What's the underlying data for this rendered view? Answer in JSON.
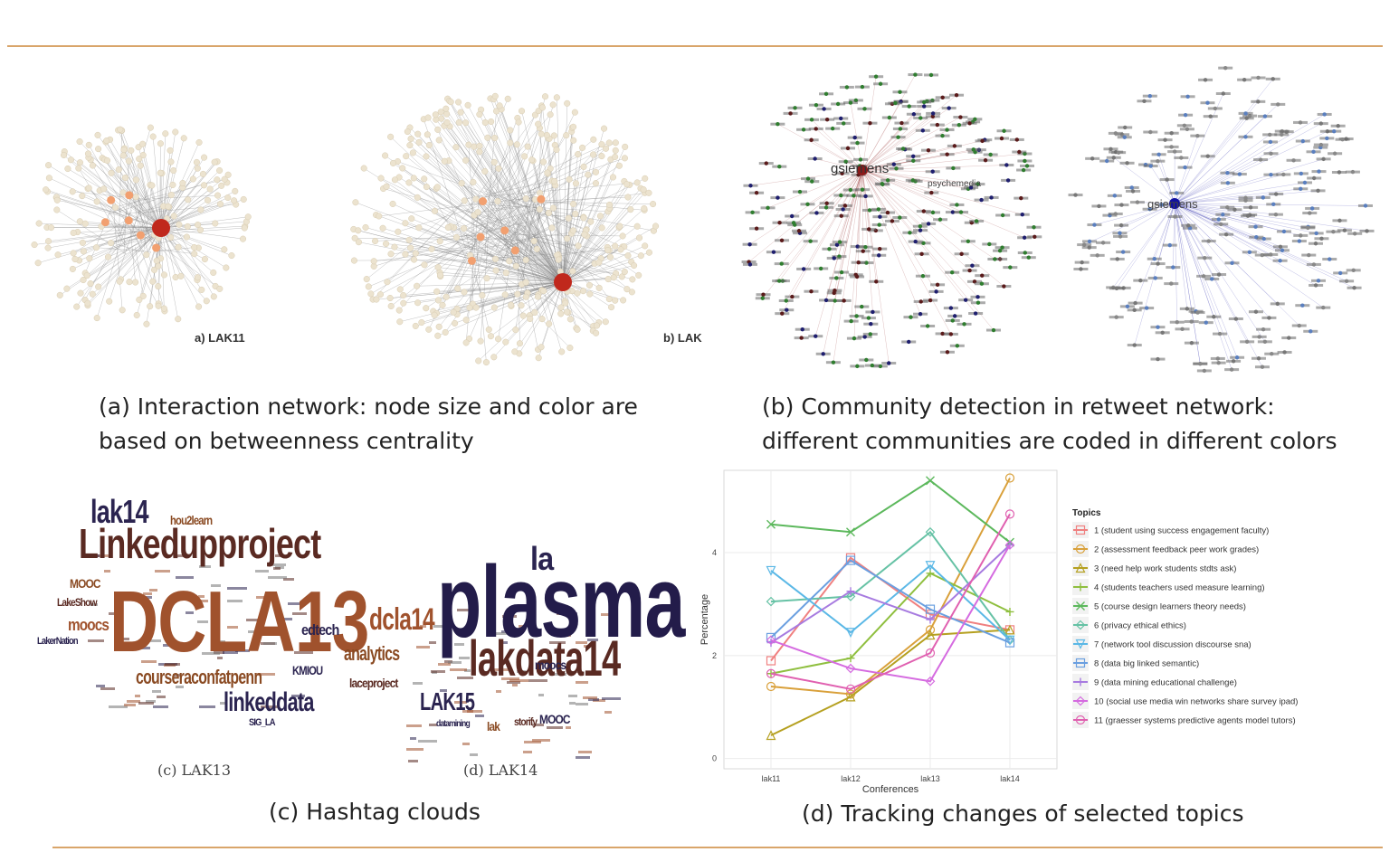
{
  "panel_a": {
    "caption_line1": "(a) Interaction network: node size and color are",
    "caption_line2": "based on betweenness centrality",
    "label_left": "a) LAK11",
    "label_right": "b) LAK"
  },
  "panel_b": {
    "caption_line1": "(b) Community detection in retweet network:",
    "caption_line2": "different communities are coded in different colors",
    "node_label_left": "gsiemens",
    "node_label_left_2": "psychemedia",
    "node_label_right": "gsiemens"
  },
  "panel_c": {
    "caption": "(c) Hashtag clouds",
    "sublabel_left": "(c) LAK13",
    "sublabel_right": "(d) LAK14",
    "cloud_lak13": [
      {
        "text": "DCLA13",
        "color": "#a0522d"
      },
      {
        "text": "Linkedupproject",
        "color": "#5a2a22"
      },
      {
        "text": "lak14",
        "color": "#2b2450"
      },
      {
        "text": "linkeddata",
        "color": "#2b2450"
      },
      {
        "text": "courseraconfatpenn",
        "color": "#8a4a22"
      },
      {
        "text": "moocs",
        "color": "#a0522d"
      },
      {
        "text": "hou2learn",
        "color": "#8a4a22"
      },
      {
        "text": "edtech",
        "color": "#2b2450"
      },
      {
        "text": "KMIOU",
        "color": "#2b2450"
      },
      {
        "text": "LakerNation",
        "color": "#2b2450"
      },
      {
        "text": "MOOC",
        "color": "#8a4a22"
      },
      {
        "text": "LakeShow",
        "color": "#5a2a22"
      },
      {
        "text": "SIG_LA",
        "color": "#2b2450"
      }
    ],
    "cloud_lak14": [
      {
        "text": "plasma",
        "color": "#231c4a"
      },
      {
        "text": "lakdata14",
        "color": "#5a2a22"
      },
      {
        "text": "la",
        "color": "#2b2450"
      },
      {
        "text": "dcla14",
        "color": "#a0522d"
      },
      {
        "text": "analytics",
        "color": "#8a4a22"
      },
      {
        "text": "LAK15",
        "color": "#2b2450"
      },
      {
        "text": "laceproject",
        "color": "#5a2a22"
      },
      {
        "text": "moocs",
        "color": "#2b2450"
      },
      {
        "text": "storify",
        "color": "#5a2a22"
      },
      {
        "text": "MOOC",
        "color": "#2b2450"
      },
      {
        "text": "datamining",
        "color": "#2b2450"
      },
      {
        "text": "lak",
        "color": "#8a4a22"
      }
    ]
  },
  "panel_d": {
    "caption": "(d) Tracking changes of selected topics"
  },
  "chart_data": {
    "type": "line",
    "title": "",
    "xlabel": "Conferences",
    "ylabel": "Percentage",
    "categories": [
      "lak11",
      "lak12",
      "lak13",
      "lak14"
    ],
    "yticks": [
      0,
      2,
      4
    ],
    "ylim": [
      -0.2,
      5.6
    ],
    "grid": true,
    "legend_title": "Topics",
    "legend_position": "right",
    "series": [
      {
        "name": "1 (student using success engagement faculty)",
        "color": "#f08080",
        "marker": "square",
        "values": [
          1.9,
          3.9,
          2.8,
          2.5
        ]
      },
      {
        "name": "2 (assessment feedback peer work grades)",
        "color": "#d9a03a",
        "marker": "circle",
        "values": [
          1.4,
          1.25,
          2.5,
          5.45
        ]
      },
      {
        "name": "3 (need help work students stdts ask)",
        "color": "#b5a020",
        "marker": "triangle",
        "values": [
          0.45,
          1.2,
          2.4,
          2.5
        ]
      },
      {
        "name": "4 (students teachers used measure learning)",
        "color": "#8fbf3f",
        "marker": "plus",
        "values": [
          1.65,
          1.95,
          3.6,
          2.85
        ]
      },
      {
        "name": "5 (course design learners theory needs)",
        "color": "#5cb85c",
        "marker": "x",
        "values": [
          4.55,
          4.4,
          5.4,
          4.2
        ]
      },
      {
        "name": "6 (privacy ethical ethics)",
        "color": "#66c2a5",
        "marker": "diamond",
        "values": [
          3.05,
          3.15,
          4.4,
          2.3
        ]
      },
      {
        "name": "7 (network tool discussion discourse sna)",
        "color": "#5bb8e6",
        "marker": "triangle-down",
        "values": [
          3.65,
          2.45,
          3.75,
          2.3
        ]
      },
      {
        "name": "8 (data big linked semantic)",
        "color": "#6a9fe0",
        "marker": "square-x",
        "values": [
          2.35,
          3.85,
          2.9,
          2.25
        ]
      },
      {
        "name": "9 (data mining educational challenge)",
        "color": "#a77be0",
        "marker": "star",
        "values": [
          2.25,
          3.25,
          2.7,
          4.15
        ]
      },
      {
        "name": "10 (social use media win networks share survey ipad)",
        "color": "#d56be0",
        "marker": "diamond",
        "values": [
          2.3,
          1.75,
          1.5,
          4.15
        ]
      },
      {
        "name": "11 (graesser systems predictive agents model tutors)",
        "color": "#e060b0",
        "marker": "circle",
        "values": [
          1.65,
          1.35,
          2.05,
          4.75
        ]
      }
    ]
  }
}
